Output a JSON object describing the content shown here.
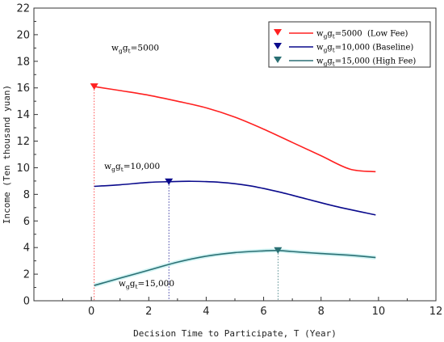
{
  "chart_data": {
    "type": "line",
    "title": "",
    "xlabel": "Decision Time to Participate, T (Year)",
    "ylabel": "Income (Ten thousand yuan)",
    "xlim": [
      -2,
      12
    ],
    "ylim": [
      0,
      22
    ],
    "xticks": [
      0,
      2,
      4,
      6,
      8,
      10,
      12
    ],
    "yticks": [
      0,
      2,
      4,
      6,
      8,
      10,
      12,
      14,
      16,
      18,
      20,
      22
    ],
    "grid": false,
    "legend_position": "top-right",
    "series": [
      {
        "name": "w_g g_t=5000 (Low Fee)",
        "legend_main": "w",
        "legend_sub1": "g",
        "legend_mid": "g",
        "legend_sub2": "t",
        "legend_rest": "=5000  (Low Fee)",
        "color": "#ff2020",
        "x": [
          0.1,
          1,
          2,
          3,
          4,
          5,
          6,
          7,
          8,
          9,
          9.9
        ],
        "y": [
          16.1,
          15.8,
          15.45,
          15.0,
          14.5,
          13.8,
          12.9,
          11.9,
          10.9,
          9.9,
          9.7
        ],
        "marker": {
          "x": 0.1,
          "y": 16.1
        },
        "annotation": {
          "prefix": "w",
          "sub1": "g",
          "mid": "g",
          "sub2": "t",
          "suffix": "=5000",
          "x": 0.7,
          "y": 18.8
        }
      },
      {
        "name": "w_g g_t=10,000 (Baseline)",
        "legend_main": "w",
        "legend_sub1": "g",
        "legend_mid": "g",
        "legend_sub2": "t",
        "legend_rest": "=10,000 (Baseline)",
        "color": "#0a0a8c",
        "x": [
          0.1,
          1,
          2,
          2.7,
          3.5,
          4.5,
          5.5,
          6.5,
          7.5,
          8.5,
          9.9
        ],
        "y": [
          8.6,
          8.72,
          8.9,
          8.95,
          8.98,
          8.9,
          8.65,
          8.2,
          7.65,
          7.1,
          6.45
        ],
        "marker": {
          "x": 2.7,
          "y": 8.95
        },
        "annotation": {
          "prefix": "w",
          "sub1": "g",
          "mid": "g",
          "sub2": "t",
          "suffix": "=10,000",
          "x": 0.45,
          "y": 9.9
        }
      },
      {
        "name": "w_g g_t=15,000 (High Fee)",
        "legend_main": "w",
        "legend_sub1": "g",
        "legend_mid": "g",
        "legend_sub2": "t",
        "legend_rest": "=15,000 (High Fee)",
        "color": "#2a6f73",
        "x": [
          0.1,
          1,
          2,
          3,
          4,
          5,
          6,
          6.5,
          7,
          8,
          9,
          9.9
        ],
        "y": [
          1.15,
          1.7,
          2.3,
          2.9,
          3.35,
          3.62,
          3.75,
          3.78,
          3.7,
          3.55,
          3.42,
          3.25
        ],
        "marker": {
          "x": 6.5,
          "y": 3.78
        },
        "annotation": {
          "prefix": "w",
          "sub1": "g",
          "mid": "g",
          "sub2": "t",
          "suffix": "=15,000",
          "x": 0.95,
          "y": 1.1
        }
      }
    ]
  }
}
